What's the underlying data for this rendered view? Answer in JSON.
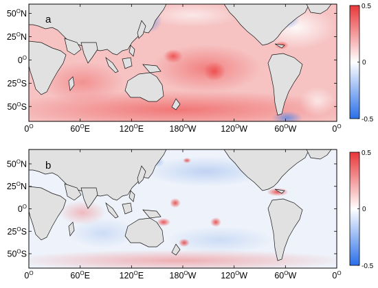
{
  "figure": {
    "panels": [
      {
        "label": "a",
        "colorbar": {
          "max_label": "0.5",
          "mid_label": "0",
          "min_label": "-0.5",
          "colors": [
            "#e8373a",
            "#ffffff",
            "#2a6fe8"
          ]
        },
        "map": {
          "land_color": "#e1e1e1",
          "ocean_base": "#f6c2c2",
          "coast_color": "#111111"
        }
      },
      {
        "label": "b",
        "colorbar": {
          "max_label": "0.5",
          "mid_label": "0",
          "min_label": "-0.5",
          "colors": [
            "#e8373a",
            "#ffffff",
            "#2a6fe8"
          ]
        },
        "map": {
          "land_color": "#e1e1e1",
          "ocean_base": "#eef3fb",
          "coast_color": "#111111"
        }
      }
    ],
    "latitude_ticks": [
      {
        "deg": 50,
        "num": "50",
        "hem": "N"
      },
      {
        "deg": 25,
        "num": "25",
        "hem": "N"
      },
      {
        "deg": 0,
        "num": "0",
        "hem": ""
      },
      {
        "deg": -25,
        "num": "25",
        "hem": "S"
      },
      {
        "deg": -50,
        "num": "50",
        "hem": "S"
      }
    ],
    "longitude_ticks": [
      {
        "lon": 0,
        "num": "0",
        "hem": ""
      },
      {
        "lon": 60,
        "num": "60",
        "hem": "E"
      },
      {
        "lon": 120,
        "num": "120",
        "hem": "E"
      },
      {
        "lon": 180,
        "num": "180",
        "hem": "W"
      },
      {
        "lon": 240,
        "num": "120",
        "hem": "W"
      },
      {
        "lon": 300,
        "num": "60",
        "hem": "W"
      },
      {
        "lon": 360,
        "num": "0",
        "hem": ""
      }
    ],
    "degree_symbol": "O"
  }
}
